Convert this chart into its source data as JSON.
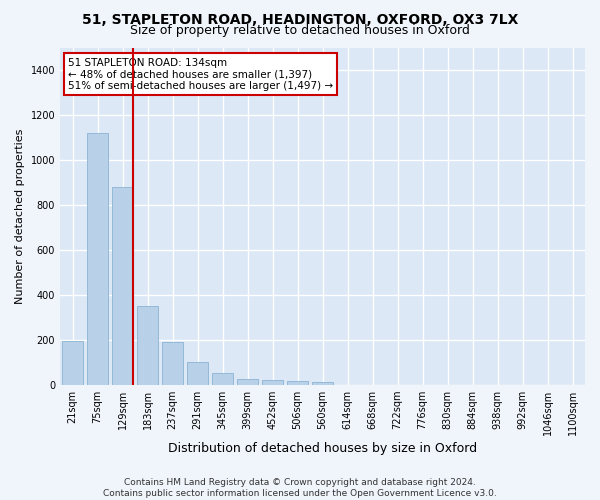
{
  "title_line1": "51, STAPLETON ROAD, HEADINGTON, OXFORD, OX3 7LX",
  "title_line2": "Size of property relative to detached houses in Oxford",
  "xlabel": "Distribution of detached houses by size in Oxford",
  "ylabel": "Number of detached properties",
  "bar_color": "#b8d0e8",
  "bar_edge_color": "#8ab4d4",
  "background_color": "#dce8f5",
  "fig_background_color": "#f0f4fb",
  "grid_color": "#ffffff",
  "categories": [
    "21sqm",
    "75sqm",
    "129sqm",
    "183sqm",
    "237sqm",
    "291sqm",
    "345sqm",
    "399sqm",
    "452sqm",
    "506sqm",
    "560sqm",
    "614sqm",
    "668sqm",
    "722sqm",
    "776sqm",
    "830sqm",
    "884sqm",
    "938sqm",
    "992sqm",
    "1046sqm",
    "1100sqm"
  ],
  "values": [
    197,
    1120,
    880,
    352,
    192,
    100,
    52,
    25,
    22,
    18,
    15,
    0,
    0,
    0,
    0,
    0,
    0,
    0,
    0,
    0,
    0
  ],
  "ylim": [
    0,
    1500
  ],
  "yticks": [
    0,
    200,
    400,
    600,
    800,
    1000,
    1200,
    1400
  ],
  "annotation_text": "51 STAPLETON ROAD: 134sqm\n← 48% of detached houses are smaller (1,397)\n51% of semi-detached houses are larger (1,497) →",
  "vline_x_index": 2,
  "vline_color": "#cc0000",
  "annotation_box_facecolor": "#ffffff",
  "annotation_box_edgecolor": "#cc0000",
  "footnote": "Contains HM Land Registry data © Crown copyright and database right 2024.\nContains public sector information licensed under the Open Government Licence v3.0.",
  "title_fontsize": 10,
  "subtitle_fontsize": 9,
  "xlabel_fontsize": 9,
  "ylabel_fontsize": 8,
  "tick_fontsize": 7,
  "annotation_fontsize": 7.5,
  "footnote_fontsize": 6.5
}
